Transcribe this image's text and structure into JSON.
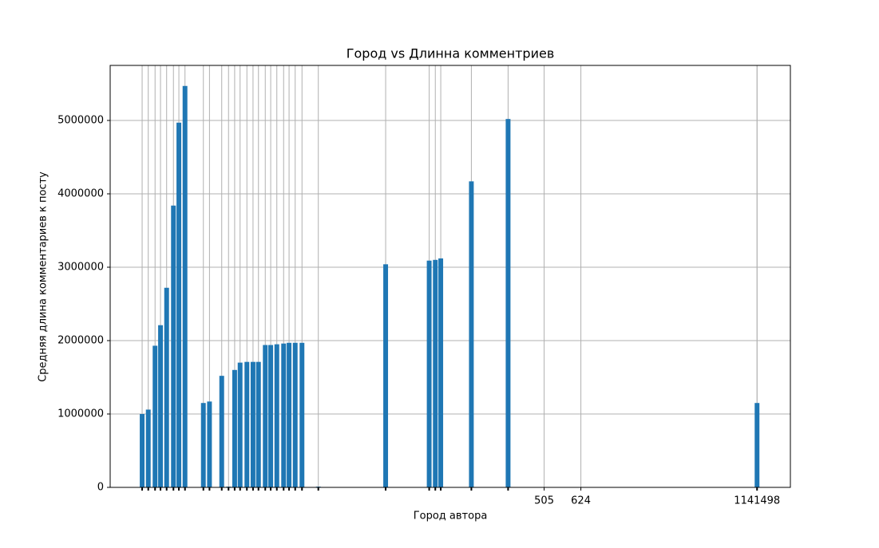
{
  "chart_data": {
    "type": "bar",
    "title": "Город vs Длинна комментриев",
    "x_label": "Город автора",
    "y_label": "Средняя длина комментариев к посту",
    "x": [
      4.7,
      5.6,
      6.6,
      7.4,
      8.3,
      9.3,
      10.1,
      11.0,
      13.7,
      14.6,
      16.4,
      17.4,
      18.3,
      19.1,
      20.1,
      21.0,
      21.8,
      22.8,
      23.6,
      24.5,
      25.5,
      26.3,
      27.2,
      28.2,
      30.6,
      40.5,
      46.9,
      47.8,
      48.6,
      53.1,
      58.5,
      95.1
    ],
    "values": [
      1000000,
      1060000,
      1930000,
      2210000,
      2720000,
      3840000,
      4970000,
      5470000,
      1150000,
      1170000,
      1520000,
      10000,
      1600000,
      1700000,
      1710000,
      1710000,
      1710000,
      1940000,
      1940000,
      1950000,
      1960000,
      1970000,
      1970000,
      1970000,
      10000,
      3040000,
      3090000,
      3100000,
      3120000,
      4170000,
      5020000,
      1150000
    ],
    "color": "#1f77b4",
    "bar_width": 0.7,
    "xlim": [
      0,
      100
    ],
    "xticks": [
      {
        "value": 63.8,
        "label": "505"
      },
      {
        "value": 69.2,
        "label": "624"
      },
      {
        "value": 95.1,
        "label": "1141498"
      }
    ],
    "ylim": [
      0,
      5750000
    ],
    "yticks": [
      0,
      1000000,
      2000000,
      3000000,
      4000000,
      5000000
    ],
    "grid": true
  }
}
